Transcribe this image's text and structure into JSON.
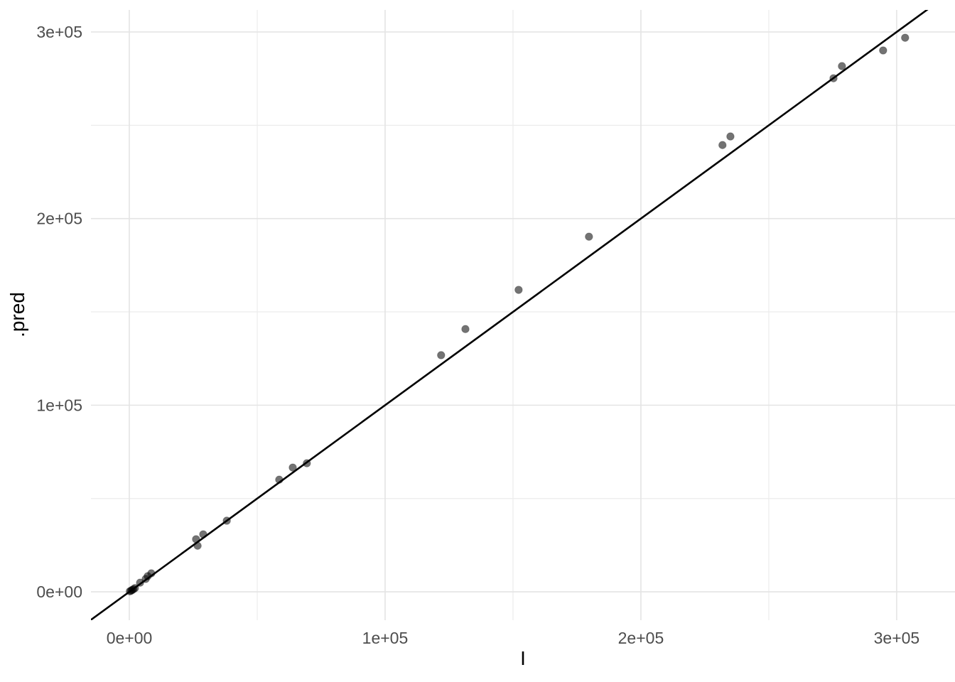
{
  "chart_data": {
    "type": "scatter",
    "title": "",
    "xlabel": "I",
    "ylabel": ".pred",
    "legend": "none",
    "grid": true,
    "xlim": [
      -15000,
      322800
    ],
    "ylim": [
      -15200,
      311800
    ],
    "x_ticks": {
      "values": [
        0,
        100000,
        200000,
        300000
      ],
      "labels": [
        "0e+00",
        "1e+05",
        "2e+05",
        "3e+05"
      ]
    },
    "y_ticks": {
      "values": [
        0,
        100000,
        200000,
        300000
      ],
      "labels": [
        "0e+00",
        "1e+05",
        "2e+05",
        "3e+05"
      ]
    },
    "x_minor": [
      50000,
      150000,
      250000
    ],
    "y_minor": [
      50000,
      150000,
      250000
    ],
    "abline": {
      "slope": 1,
      "intercept": 0
    },
    "points": [
      [
        200,
        300
      ],
      [
        700,
        600
      ],
      [
        1100,
        1000
      ],
      [
        1600,
        1400
      ],
      [
        2200,
        2000
      ],
      [
        4200,
        4900
      ],
      [
        6400,
        6900
      ],
      [
        7200,
        8400
      ],
      [
        8600,
        9900
      ],
      [
        26100,
        28200
      ],
      [
        26700,
        24700
      ],
      [
        28900,
        30800
      ],
      [
        38100,
        38100
      ],
      [
        58600,
        60100
      ],
      [
        63900,
        66600
      ],
      [
        69400,
        68900
      ],
      [
        121900,
        126800
      ],
      [
        131400,
        140800
      ],
      [
        152200,
        161800
      ],
      [
        179700,
        190300
      ],
      [
        231900,
        239400
      ],
      [
        235000,
        244000
      ],
      [
        275300,
        275200
      ],
      [
        278600,
        281700
      ],
      [
        294700,
        290100
      ],
      [
        303300,
        296900
      ]
    ],
    "point_style": {
      "radius": 5.3,
      "fill": "#000000",
      "opacity": 0.55
    },
    "line_style": {
      "color": "#000000",
      "width": 2.6
    },
    "colors": {
      "background": "#ffffff",
      "grid_major": "#e4e4e4",
      "grid_minor": "#ececec",
      "tick_text": "#4d4d4d",
      "title_text": "#000000"
    },
    "tick_font_size": 23,
    "title_font_size": 28
  }
}
